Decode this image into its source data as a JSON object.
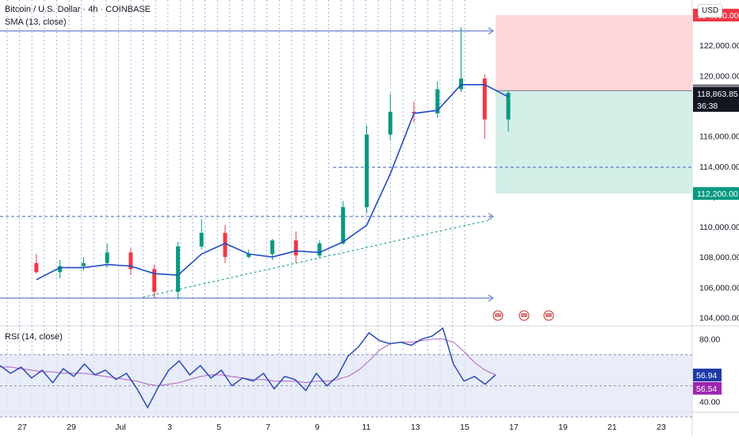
{
  "header": {
    "symbol": "Bitcoin / U.S. Dollar · 4h · COINBASE",
    "sma_legend": "SMA (13, close)",
    "rsi_legend": "RSI (14, close)",
    "currency": "USD"
  },
  "colors": {
    "up": "#089981",
    "down": "#f23645",
    "sma": "#2962ff",
    "rsi": "#2949b8",
    "rsi_ma": "#b05fc0",
    "target_zone": "#d3efe8",
    "stop_zone": "#fdd7da",
    "grid": "#5b7cc8"
  },
  "chart_data": [
    {
      "type": "candlestick",
      "title": "Bitcoin / U.S. Dollar · 4h · COINBASE",
      "x_tick_labels": [
        "27",
        "29",
        "Jul",
        "3",
        "5",
        "7",
        "9",
        "11",
        "13",
        "15",
        "17",
        "19",
        "21",
        "23"
      ],
      "y_tick_labels": [
        "104,000.00",
        "106,000.00",
        "108,000.00",
        "110,000.00",
        "112,000.00",
        "114,000.00",
        "116,000.00",
        "118,000.00",
        "120,000.00",
        "122,000.00",
        "124,000.00"
      ],
      "ylim": [
        103500,
        125000
      ],
      "price_labels": [
        {
          "text": "124,000.00",
          "value": 124000,
          "kind": "stop"
        },
        {
          "text": "119,000.00",
          "value": 119000,
          "kind": "grey"
        },
        {
          "text": "118,863.85",
          "value": 118863.85,
          "kind": "last"
        },
        {
          "text": "36:38",
          "value": null,
          "kind": "countdown"
        },
        {
          "text": "112,200.00",
          "value": 112200,
          "kind": "target"
        }
      ],
      "series": [
        {
          "name": "SMA (13, close)",
          "points": [
            [
              "Jun 26",
              106500
            ],
            [
              "Jun 27",
              107300
            ],
            [
              "Jun 28",
              107300
            ],
            [
              "Jun 29",
              107500
            ],
            [
              "Jun 30",
              107400
            ],
            [
              "Jul 1",
              106900
            ],
            [
              "Jul 2",
              106800
            ],
            [
              "Jul 3",
              108200
            ],
            [
              "Jul 4",
              108900
            ],
            [
              "Jul 5",
              108200
            ],
            [
              "Jul 6",
              108000
            ],
            [
              "Jul 7",
              108400
            ],
            [
              "Jul 8",
              108300
            ],
            [
              "Jul 9",
              109000
            ],
            [
              "Jul 10",
              110100
            ],
            [
              "Jul 11",
              113500
            ],
            [
              "Jul 12",
              117500
            ],
            [
              "Jul 13",
              117700
            ],
            [
              "Jul 14",
              119400
            ],
            [
              "Jul 15",
              119400
            ],
            [
              "Jul 16",
              118600
            ]
          ]
        }
      ],
      "candles": [
        {
          "t": "Jun 26",
          "o": 107600,
          "h": 108200,
          "l": 106900,
          "c": 107000
        },
        {
          "t": "Jun 27",
          "o": 107000,
          "h": 107800,
          "l": 106600,
          "c": 107400
        },
        {
          "t": "Jun 28",
          "o": 107400,
          "h": 108000,
          "l": 107100,
          "c": 107600
        },
        {
          "t": "Jun 29",
          "o": 107600,
          "h": 108900,
          "l": 107300,
          "c": 108300
        },
        {
          "t": "Jun 30",
          "o": 108300,
          "h": 108600,
          "l": 106800,
          "c": 107200
        },
        {
          "t": "Jul 1",
          "o": 107200,
          "h": 107500,
          "l": 105300,
          "c": 105700
        },
        {
          "t": "Jul 2",
          "o": 105700,
          "h": 109000,
          "l": 105200,
          "c": 108700
        },
        {
          "t": "Jul 3",
          "o": 108700,
          "h": 110500,
          "l": 108500,
          "c": 109600
        },
        {
          "t": "Jul 4",
          "o": 109600,
          "h": 110100,
          "l": 107600,
          "c": 108000
        },
        {
          "t": "Jul 5",
          "o": 108000,
          "h": 108500,
          "l": 107900,
          "c": 108200
        },
        {
          "t": "Jul 6",
          "o": 108200,
          "h": 109200,
          "l": 107800,
          "c": 109100
        },
        {
          "t": "Jul 7",
          "o": 109100,
          "h": 109700,
          "l": 107600,
          "c": 108100
        },
        {
          "t": "Jul 8",
          "o": 108100,
          "h": 109100,
          "l": 107900,
          "c": 108900
        },
        {
          "t": "Jul 9",
          "o": 108900,
          "h": 111700,
          "l": 108800,
          "c": 111300
        },
        {
          "t": "Jul 10",
          "o": 111300,
          "h": 116700,
          "l": 110900,
          "c": 116100
        },
        {
          "t": "Jul 11",
          "o": 116100,
          "h": 118800,
          "l": 115700,
          "c": 117600
        },
        {
          "t": "Jul 12",
          "o": 117600,
          "h": 118300,
          "l": 116900,
          "c": 117500
        },
        {
          "t": "Jul 13",
          "o": 117500,
          "h": 119600,
          "l": 117200,
          "c": 119100
        },
        {
          "t": "Jul 14",
          "o": 119100,
          "h": 123200,
          "l": 118900,
          "c": 119800
        },
        {
          "t": "Jul 15",
          "o": 119800,
          "h": 120100,
          "l": 115800,
          "c": 117100
        },
        {
          "t": "Jul 16",
          "o": 117100,
          "h": 119000,
          "l": 116300,
          "c": 118860
        }
      ],
      "position": {
        "entry": 119000,
        "stop": 124000,
        "target": 112200
      }
    },
    {
      "type": "line",
      "title": "RSI (14, close)",
      "y_tick_labels": [
        "40.00",
        "80.00"
      ],
      "ylim": [
        33,
        88
      ],
      "value_labels": [
        {
          "text": "56.94",
          "value": 56.94,
          "kind": "rsi"
        },
        {
          "text": "56.54",
          "value": 56.54,
          "kind": "ma"
        }
      ],
      "band": [
        30,
        70
      ],
      "series": [
        {
          "name": "RSI (14, close)",
          "values": [
            63,
            58,
            62,
            55,
            60,
            52,
            61,
            56,
            64,
            57,
            60,
            54,
            58,
            48,
            36,
            49,
            60,
            66,
            57,
            63,
            55,
            60,
            50,
            55,
            53,
            58,
            48,
            56,
            54,
            47,
            58,
            50,
            56,
            69,
            75,
            84,
            79,
            77,
            78,
            76,
            80,
            82,
            87,
            64,
            53,
            56,
            51,
            57
          ]
        },
        {
          "name": "RSI MA",
          "values": [
            62,
            62,
            61,
            60,
            59,
            59,
            58,
            58,
            58,
            57,
            56,
            55,
            54,
            53,
            51,
            50,
            51,
            52,
            54,
            56,
            57,
            57,
            56,
            55,
            54,
            54,
            53,
            53,
            53,
            52,
            53,
            53,
            54,
            56,
            60,
            66,
            73,
            77,
            78,
            78,
            79,
            80,
            80,
            78,
            72,
            65,
            60,
            57
          ]
        }
      ]
    }
  ]
}
